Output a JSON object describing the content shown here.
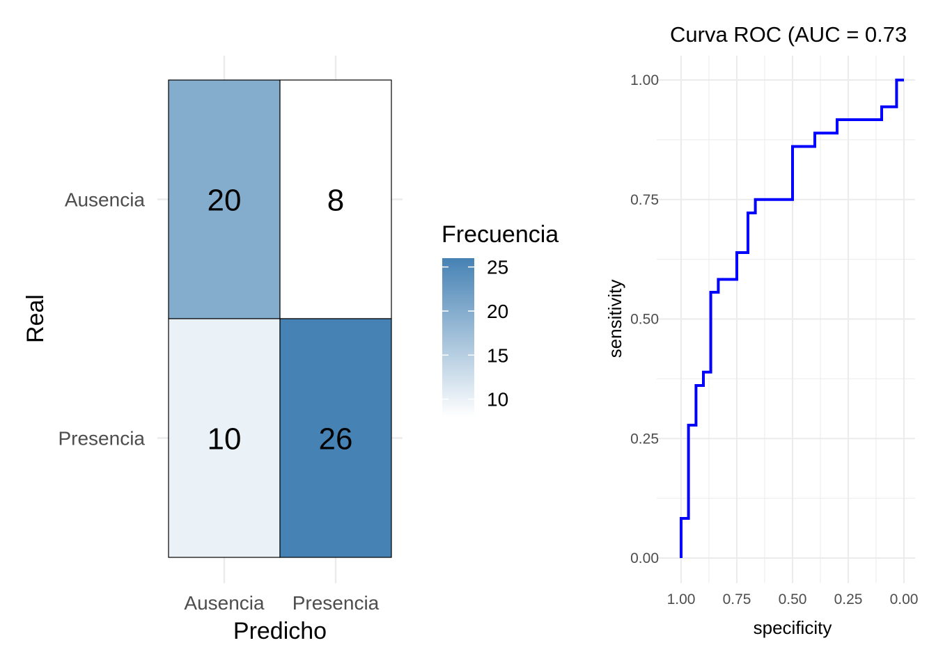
{
  "chart_data": [
    {
      "type": "heatmap",
      "title": "",
      "xlabel": "Predicho",
      "ylabel": "Real",
      "x_categories": [
        "Ausencia",
        "Presencia"
      ],
      "y_categories": [
        "Ausencia",
        "Presencia"
      ],
      "cells": [
        {
          "predicho": "Ausencia",
          "real": "Ausencia",
          "value": 20,
          "label": "20"
        },
        {
          "predicho": "Presencia",
          "real": "Ausencia",
          "value": 8,
          "label": "8"
        },
        {
          "predicho": "Ausencia",
          "real": "Presencia",
          "value": 10,
          "label": "10"
        },
        {
          "predicho": "Presencia",
          "real": "Presencia",
          "value": 26,
          "label": "26"
        }
      ],
      "legend": {
        "title": "Frecuencia",
        "placement": "right",
        "range": [
          8,
          26
        ],
        "ticks": [
          "10",
          "15",
          "20",
          "25"
        ],
        "low_color": "#ffffff",
        "high_color": "#4682b4"
      },
      "grid": true
    },
    {
      "type": "line",
      "title": "Curva ROC (AUC = 0.73",
      "xlabel": "specificity",
      "ylabel": "sensitivity",
      "x_reversed": true,
      "xlim": [
        1.0,
        0.0
      ],
      "ylim": [
        0.0,
        1.0
      ],
      "x_ticks": [
        "1.00",
        "0.75",
        "0.50",
        "0.25",
        "0.00"
      ],
      "y_ticks": [
        "0.00",
        "0.25",
        "0.50",
        "0.75",
        "1.00"
      ],
      "line_color": "#0000ff",
      "grid": true,
      "series": [
        {
          "specificity": [
            1.0,
            1.0,
            0.967,
            0.967,
            0.933,
            0.933,
            0.9,
            0.9,
            0.867,
            0.867,
            0.833,
            0.833,
            0.75,
            0.75,
            0.7,
            0.7,
            0.667,
            0.667,
            0.5,
            0.5,
            0.4,
            0.4,
            0.3,
            0.3,
            0.1,
            0.1,
            0.033,
            0.033,
            0.0
          ],
          "sensitivity": [
            0.0,
            0.083,
            0.083,
            0.278,
            0.278,
            0.361,
            0.361,
            0.389,
            0.389,
            0.556,
            0.556,
            0.583,
            0.583,
            0.639,
            0.639,
            0.722,
            0.722,
            0.75,
            0.75,
            0.861,
            0.861,
            0.889,
            0.889,
            0.917,
            0.917,
            0.944,
            0.944,
            1.0,
            1.0
          ]
        }
      ]
    }
  ]
}
